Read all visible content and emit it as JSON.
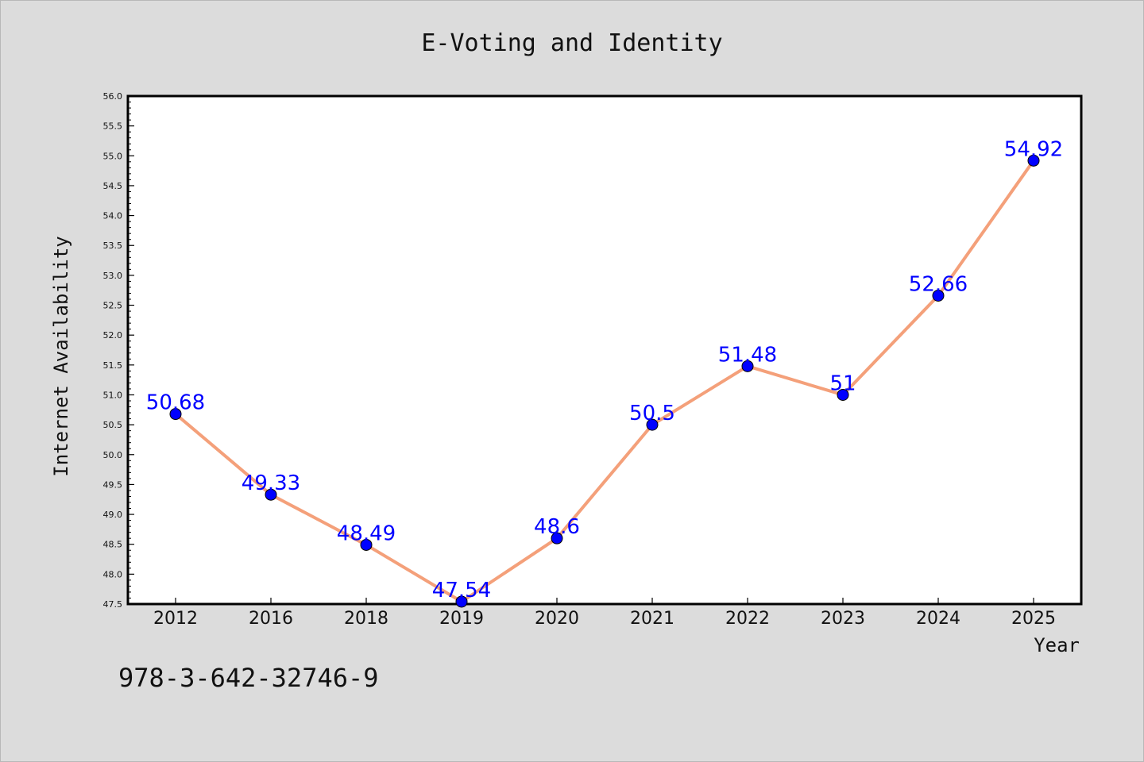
{
  "chart_data": {
    "type": "line",
    "title": "E-Voting and Identity",
    "xlabel": "Year",
    "ylabel": "Internet Availability",
    "categories": [
      "2012",
      "2016",
      "2018",
      "2019",
      "2020",
      "2021",
      "2022",
      "2023",
      "2024",
      "2025"
    ],
    "series": [
      {
        "values": [
          50.68,
          49.33,
          48.49,
          47.54,
          48.6,
          50.5,
          51.48,
          51,
          52.66,
          54.92
        ],
        "labels": [
          "50.68",
          "49.33",
          "48.49",
          "47.54",
          "48.6",
          "50.5",
          "51.48",
          "51",
          "52.66",
          "54.92"
        ],
        "line_color": "#f4a07a",
        "marker_color": "#0000ff"
      }
    ],
    "ylim": [
      47.5,
      56.0
    ],
    "yticks": [
      "47.5",
      "48.0",
      "48.5",
      "49.0",
      "49.5",
      "50.0",
      "50.5",
      "51.0",
      "51.5",
      "52.0",
      "52.5",
      "53.0",
      "53.5",
      "54.0",
      "54.5",
      "55.0",
      "55.5",
      "56.0"
    ],
    "grid": false,
    "legend": "none"
  },
  "annotation": "978-3-642-32746-9",
  "colors": {
    "background": "#dcdcdc",
    "plot_background": "#ffffff",
    "line": "#f4a07a",
    "marker": "#0000ff",
    "data_label": "#0000ff"
  }
}
